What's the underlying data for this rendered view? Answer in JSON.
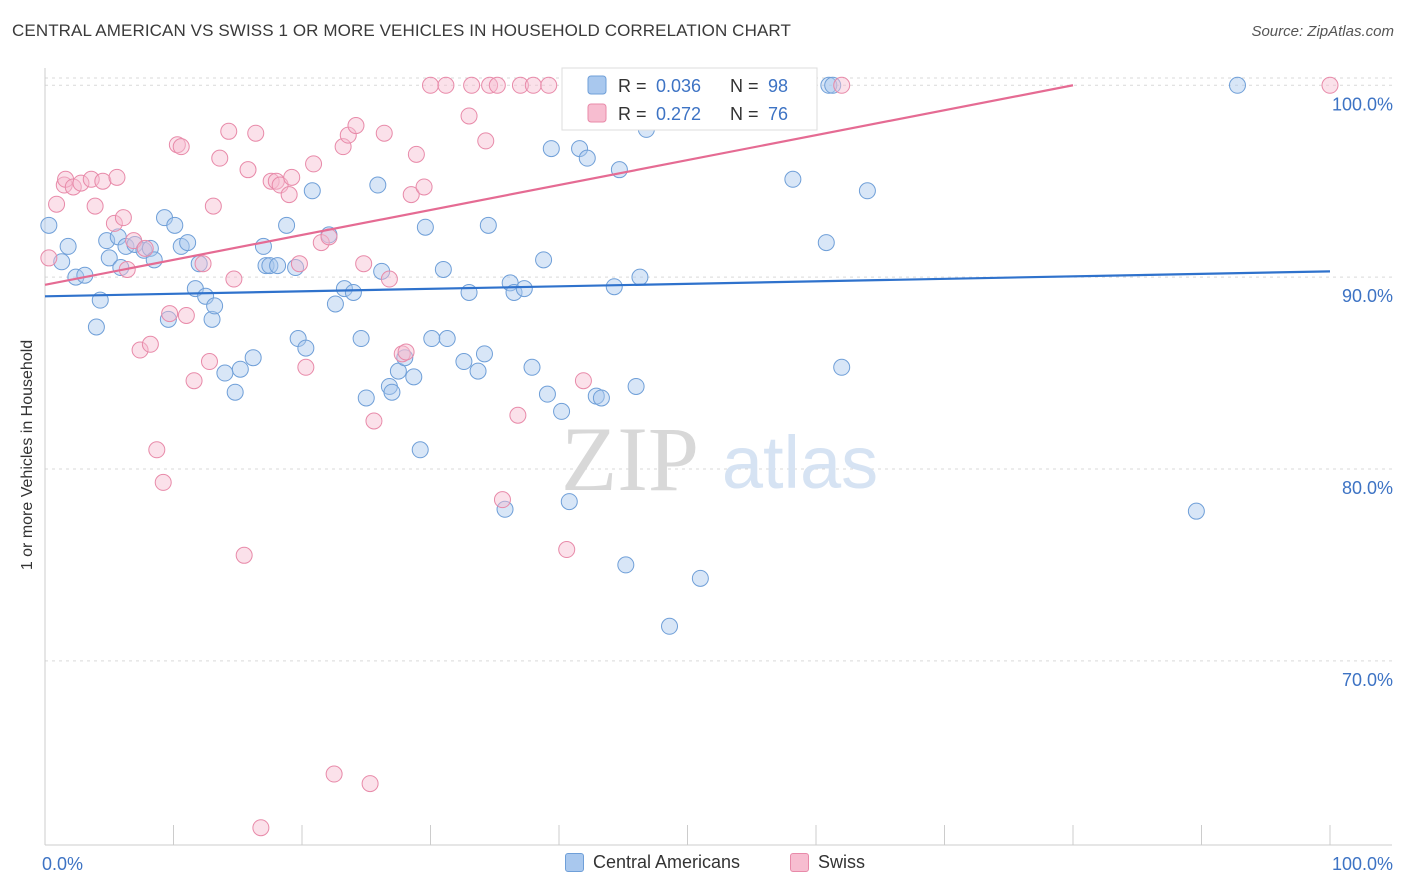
{
  "title": "CENTRAL AMERICAN VS SWISS 1 OR MORE VEHICLES IN HOUSEHOLD CORRELATION CHART",
  "source": "Source: ZipAtlas.com",
  "watermark": {
    "zip": "ZIP",
    "atlas": "atlas"
  },
  "colors": {
    "blue_fill": "#a9c8ee",
    "blue_stroke": "#6f9fd8",
    "blue_line": "#2f72cc",
    "pink_fill": "#f7bdd0",
    "pink_stroke": "#e88aa9",
    "pink_line": "#e56b93",
    "tick_label": "#3d73c4",
    "grid": "#d9d9d9"
  },
  "legend_top": {
    "rows": [
      {
        "r_label": "R =",
        "r_value": "0.036",
        "n_label": "N =",
        "n_value": "98",
        "series": "blue"
      },
      {
        "r_label": "R =",
        "r_value": "0.272",
        "n_label": "N =",
        "n_value": "76",
        "series": "pink"
      }
    ]
  },
  "legend_bottom": [
    {
      "label": "Central Americans",
      "series": "blue"
    },
    {
      "label": "Swiss",
      "series": "pink"
    }
  ],
  "chart_data": {
    "type": "scatter",
    "title": "CENTRAL AMERICAN VS SWISS 1 OR MORE VEHICLES IN HOUSEHOLD CORRELATION CHART",
    "xlabel": "",
    "ylabel": "1 or more Vehicles in Household",
    "xlim": [
      0,
      100
    ],
    "ylim": [
      60.4,
      100.9
    ],
    "x_tick_labels": [
      "0.0%",
      "100.0%"
    ],
    "y_ticks": [
      {
        "value": 100,
        "label": "100.0%"
      },
      {
        "value": 90,
        "label": "90.0%"
      },
      {
        "value": 80,
        "label": "80.0%"
      },
      {
        "value": 70,
        "label": "70.0%"
      }
    ],
    "grid": true,
    "legend": "top-center",
    "series": [
      {
        "name": "Central Americans",
        "color": "blue",
        "R": 0.036,
        "N": 98,
        "trend": [
          [
            0,
            89.0
          ],
          [
            100,
            90.3
          ]
        ],
        "points": [
          [
            0.3,
            92.7
          ],
          [
            1.3,
            90.8
          ],
          [
            1.8,
            91.6
          ],
          [
            2.4,
            90.0
          ],
          [
            3.1,
            90.1
          ],
          [
            4.0,
            87.4
          ],
          [
            4.3,
            88.8
          ],
          [
            4.8,
            91.9
          ],
          [
            5.0,
            91.0
          ],
          [
            5.7,
            92.1
          ],
          [
            5.9,
            90.5
          ],
          [
            6.3,
            91.6
          ],
          [
            7.0,
            91.7
          ],
          [
            7.7,
            91.4
          ],
          [
            8.2,
            91.5
          ],
          [
            8.5,
            90.9
          ],
          [
            9.3,
            93.1
          ],
          [
            9.6,
            87.8
          ],
          [
            10.1,
            92.7
          ],
          [
            10.6,
            91.6
          ],
          [
            11.1,
            91.8
          ],
          [
            11.7,
            89.4
          ],
          [
            12.0,
            90.7
          ],
          [
            12.5,
            89.0
          ],
          [
            13.0,
            87.8
          ],
          [
            13.2,
            88.5
          ],
          [
            14.0,
            85.0
          ],
          [
            14.8,
            84.0
          ],
          [
            15.2,
            85.2
          ],
          [
            16.2,
            85.8
          ],
          [
            17.0,
            91.6
          ],
          [
            17.2,
            90.6
          ],
          [
            17.5,
            90.6
          ],
          [
            18.1,
            90.6
          ],
          [
            18.8,
            92.7
          ],
          [
            19.5,
            90.5
          ],
          [
            19.7,
            86.8
          ],
          [
            20.3,
            86.3
          ],
          [
            20.8,
            94.5
          ],
          [
            22.1,
            92.2
          ],
          [
            22.6,
            88.6
          ],
          [
            23.3,
            89.4
          ],
          [
            24.0,
            89.2
          ],
          [
            24.6,
            86.8
          ],
          [
            25.0,
            83.7
          ],
          [
            25.9,
            94.8
          ],
          [
            26.2,
            90.3
          ],
          [
            26.8,
            84.3
          ],
          [
            27.0,
            84.0
          ],
          [
            27.5,
            85.1
          ],
          [
            28.0,
            85.8
          ],
          [
            28.7,
            84.8
          ],
          [
            29.2,
            81.0
          ],
          [
            29.6,
            92.6
          ],
          [
            30.1,
            86.8
          ],
          [
            31.0,
            90.4
          ],
          [
            31.3,
            86.8
          ],
          [
            32.6,
            85.6
          ],
          [
            33.0,
            89.2
          ],
          [
            33.7,
            85.1
          ],
          [
            34.2,
            86.0
          ],
          [
            34.5,
            92.7
          ],
          [
            35.8,
            77.9
          ],
          [
            36.2,
            89.7
          ],
          [
            36.5,
            89.2
          ],
          [
            37.3,
            89.4
          ],
          [
            37.9,
            85.3
          ],
          [
            38.8,
            90.9
          ],
          [
            39.1,
            83.9
          ],
          [
            39.4,
            96.7
          ],
          [
            40.2,
            83.0
          ],
          [
            40.8,
            78.3
          ],
          [
            41.6,
            96.7
          ],
          [
            41.7,
            100.0
          ],
          [
            42.2,
            96.2
          ],
          [
            42.9,
            83.8
          ],
          [
            43.3,
            83.7
          ],
          [
            44.3,
            89.5
          ],
          [
            44.7,
            95.6
          ],
          [
            45.2,
            75.0
          ],
          [
            46.0,
            84.3
          ],
          [
            46.3,
            90.0
          ],
          [
            46.8,
            97.7
          ],
          [
            47.4,
            100.0
          ],
          [
            48.6,
            71.8
          ],
          [
            49.3,
            100.0
          ],
          [
            50.0,
            100.0
          ],
          [
            50.2,
            100.0
          ],
          [
            51.0,
            74.3
          ],
          [
            52.0,
            100.0
          ],
          [
            58.2,
            95.1
          ],
          [
            60.8,
            91.8
          ],
          [
            61.0,
            100.0
          ],
          [
            61.3,
            100.0
          ],
          [
            62.0,
            85.3
          ],
          [
            64.0,
            94.5
          ],
          [
            89.6,
            77.8
          ],
          [
            92.8,
            100.0
          ]
        ]
      },
      {
        "name": "Swiss",
        "color": "pink",
        "R": 0.272,
        "N": 76,
        "trend": [
          [
            0,
            89.6
          ],
          [
            80,
            100.0
          ]
        ],
        "points": [
          [
            0.3,
            91.0
          ],
          [
            0.9,
            93.8
          ],
          [
            1.5,
            94.8
          ],
          [
            1.6,
            95.1
          ],
          [
            2.2,
            94.7
          ],
          [
            2.8,
            94.9
          ],
          [
            3.6,
            95.1
          ],
          [
            3.9,
            93.7
          ],
          [
            4.5,
            95.0
          ],
          [
            5.4,
            92.8
          ],
          [
            5.6,
            95.2
          ],
          [
            6.1,
            93.1
          ],
          [
            6.4,
            90.4
          ],
          [
            6.9,
            91.9
          ],
          [
            7.4,
            86.2
          ],
          [
            7.8,
            91.5
          ],
          [
            8.2,
            86.5
          ],
          [
            8.7,
            81.0
          ],
          [
            9.2,
            79.3
          ],
          [
            9.7,
            88.1
          ],
          [
            10.3,
            96.9
          ],
          [
            10.6,
            96.8
          ],
          [
            11.0,
            88.0
          ],
          [
            11.6,
            84.6
          ],
          [
            12.3,
            90.7
          ],
          [
            12.8,
            85.6
          ],
          [
            13.1,
            93.7
          ],
          [
            13.6,
            96.2
          ],
          [
            14.3,
            97.6
          ],
          [
            14.7,
            89.9
          ],
          [
            15.5,
            75.5
          ],
          [
            15.8,
            95.6
          ],
          [
            16.4,
            97.5
          ],
          [
            16.8,
            61.3
          ],
          [
            17.6,
            95.0
          ],
          [
            18.0,
            95.0
          ],
          [
            18.3,
            94.8
          ],
          [
            19.0,
            94.3
          ],
          [
            19.2,
            95.2
          ],
          [
            19.8,
            90.7
          ],
          [
            20.3,
            85.3
          ],
          [
            20.9,
            95.9
          ],
          [
            21.5,
            91.8
          ],
          [
            22.1,
            92.1
          ],
          [
            22.5,
            64.1
          ],
          [
            23.2,
            96.8
          ],
          [
            23.6,
            97.4
          ],
          [
            24.2,
            97.9
          ],
          [
            24.8,
            90.7
          ],
          [
            25.3,
            63.6
          ],
          [
            25.6,
            82.5
          ],
          [
            26.4,
            97.5
          ],
          [
            26.8,
            89.9
          ],
          [
            27.8,
            86.0
          ],
          [
            28.1,
            86.1
          ],
          [
            28.5,
            94.3
          ],
          [
            28.9,
            96.4
          ],
          [
            29.5,
            94.7
          ],
          [
            30.0,
            100.0
          ],
          [
            31.2,
            100.0
          ],
          [
            33.0,
            98.4
          ],
          [
            33.2,
            100.0
          ],
          [
            34.3,
            97.1
          ],
          [
            34.6,
            100.0
          ],
          [
            35.2,
            100.0
          ],
          [
            35.6,
            78.4
          ],
          [
            36.8,
            82.8
          ],
          [
            37.0,
            100.0
          ],
          [
            38.0,
            100.0
          ],
          [
            39.2,
            100.0
          ],
          [
            40.6,
            75.8
          ],
          [
            41.6,
            100.0
          ],
          [
            41.9,
            84.6
          ],
          [
            46.0,
            100.0
          ],
          [
            62.0,
            100.0
          ],
          [
            100.0,
            100.0
          ]
        ]
      }
    ]
  }
}
